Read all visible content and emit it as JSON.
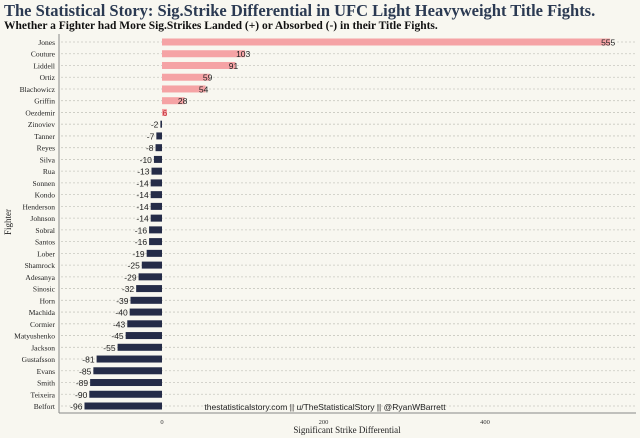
{
  "chart_data": {
    "type": "bar",
    "orientation": "horizontal",
    "title": "The Statistical Story: Sig.Strike Differential in UFC Light Heavyweight Title Fights.",
    "subtitle": "Whether a Fighter had More Sig.Strikes Landed (+) or Absorbed (-) in their Title Fights.",
    "xlabel": "Significant Strike Differential",
    "ylabel": "Fighter",
    "caption": "thestatisticalstory.com || u/TheStatisticalStory || @RyanWBarrett",
    "xlim": [
      -96,
      555
    ],
    "xticks": [
      0,
      200,
      400
    ],
    "grid": "horizontal dashed",
    "colors": {
      "positive": "#f5a3a5",
      "negative": "#252c48",
      "positive_label": "#c0303a"
    },
    "categories": [
      "Jones",
      "Couture",
      "Liddell",
      "Ortiz",
      "Blachowicz",
      "Griffin",
      "Oezdemir",
      "Zinoviev",
      "Tanner",
      "Reyes",
      "Silva",
      "Rua",
      "Sonnen",
      "Kondo",
      "Henderson",
      "Johnson",
      "Sobral",
      "Santos",
      "Lober",
      "Shamrock",
      "Adesanya",
      "Sinosic",
      "Horn",
      "Machida",
      "Cormier",
      "Matyushenko",
      "Jackson",
      "Gustafsson",
      "Evans",
      "Smith",
      "Teixeira",
      "Belfort"
    ],
    "values": [
      555,
      103,
      91,
      59,
      54,
      28,
      6,
      -2,
      -7,
      -8,
      -10,
      -13,
      -14,
      -14,
      -14,
      -14,
      -16,
      -16,
      -19,
      -25,
      -29,
      -32,
      -39,
      -40,
      -43,
      -45,
      -55,
      -81,
      -85,
      -89,
      -90,
      -96
    ]
  }
}
